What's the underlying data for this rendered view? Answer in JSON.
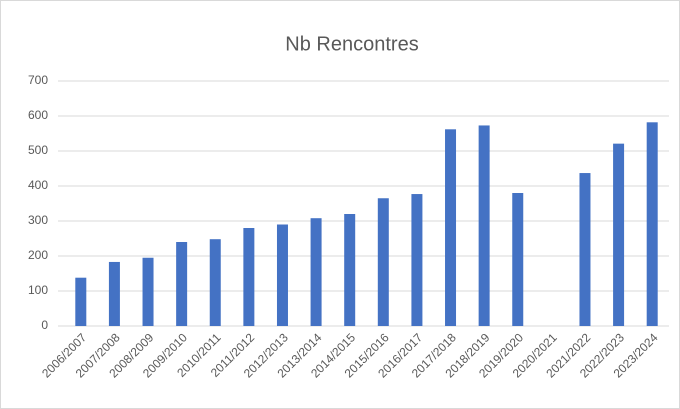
{
  "chart_data": {
    "type": "bar",
    "title": "Nb Rencontres",
    "categories": [
      "2006/2007",
      "2007/2008",
      "2008/2009",
      "2009/2010",
      "2010/2011",
      "2011/2012",
      "2012/2013",
      "2013/2014",
      "2014/2015",
      "2015/2016",
      "2016/2017",
      "2017/2018",
      "2018/2019",
      "2019/2020",
      "2020/2021",
      "2021/2022",
      "2022/2023",
      "2023/2024"
    ],
    "values": [
      138,
      183,
      195,
      240,
      248,
      280,
      290,
      308,
      320,
      365,
      377,
      562,
      573,
      380,
      null,
      437,
      521,
      582
    ],
    "color": "#4472c4",
    "ylim": [
      0,
      700
    ],
    "yticks": [
      0,
      100,
      200,
      300,
      400,
      500,
      600,
      700
    ],
    "grid": true
  }
}
